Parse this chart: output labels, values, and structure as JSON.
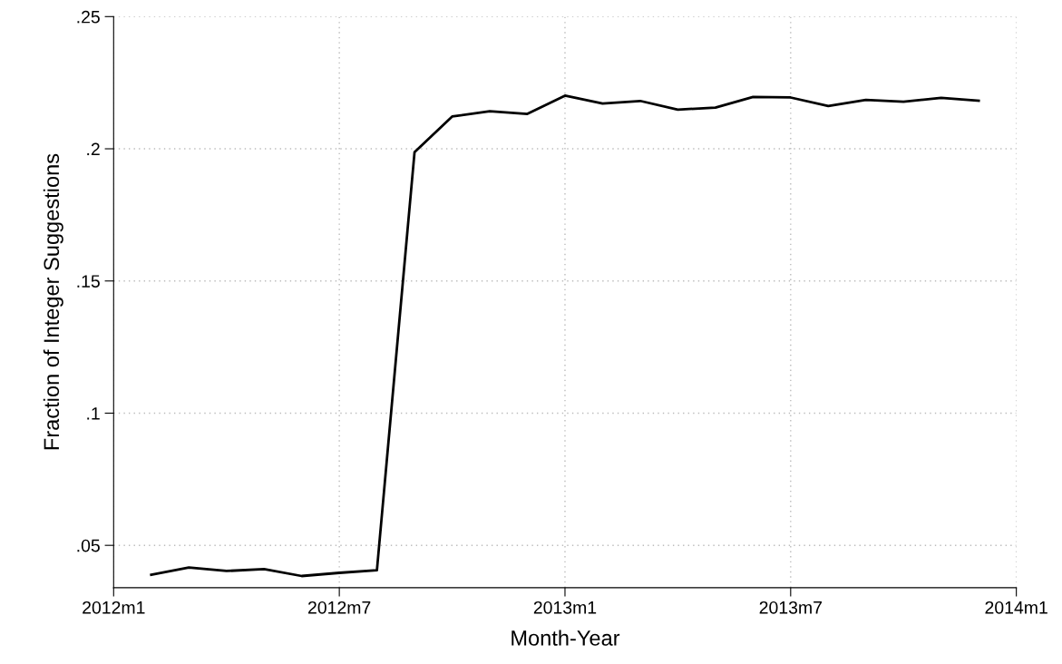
{
  "chart_data": {
    "type": "line",
    "xlabel": "Month-Year",
    "ylabel": "Fraction of Integer Suggestions",
    "x": [
      "2012-02",
      "2012-03",
      "2012-04",
      "2012-05",
      "2012-06",
      "2012-07",
      "2012-08",
      "2012-09",
      "2012-10",
      "2012-11",
      "2012-12",
      "2013-01",
      "2013-02",
      "2013-03",
      "2013-04",
      "2013-05",
      "2013-06",
      "2013-07",
      "2013-08",
      "2013-09",
      "2013-10",
      "2013-11",
      "2013-12"
    ],
    "series": [
      {
        "color": "#000000",
        "values": [
          0.0389,
          0.0416,
          0.0403,
          0.041,
          0.0384,
          0.0396,
          0.0406,
          0.1987,
          0.2122,
          0.2142,
          0.2132,
          0.2201,
          0.2171,
          0.2181,
          0.2148,
          0.2156,
          0.2196,
          0.2194,
          0.2162,
          0.2185,
          0.2178,
          0.2193,
          0.2182
        ]
      }
    ],
    "xlim": [
      "2012-01",
      "2014-01"
    ],
    "xticks": [
      {
        "value": "2012-01",
        "label": "2012m1"
      },
      {
        "value": "2012-07",
        "label": "2012m7"
      },
      {
        "value": "2013-01",
        "label": "2013m1"
      },
      {
        "value": "2013-07",
        "label": "2013m7"
      },
      {
        "value": "2014-01",
        "label": "2014m1"
      }
    ],
    "ylim": [
      0.034,
      0.25
    ],
    "yticks": [
      {
        "value": 0.05,
        "label": ".05"
      },
      {
        "value": 0.1,
        "label": ".1"
      },
      {
        "value": 0.15,
        "label": ".15"
      },
      {
        "value": 0.2,
        "label": ".2"
      },
      {
        "value": 0.25,
        "label": ".25"
      }
    ],
    "grid": true,
    "marker": "none",
    "line_style": "solid"
  }
}
